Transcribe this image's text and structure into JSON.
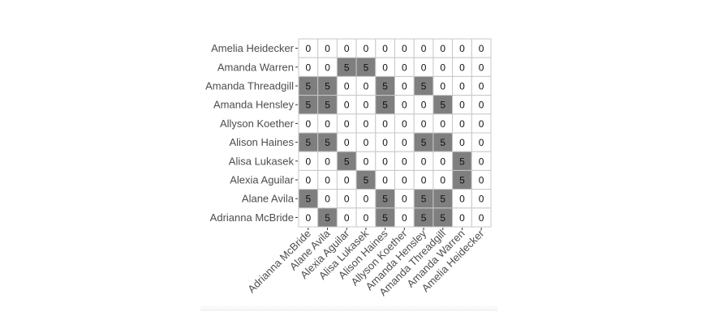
{
  "chart_data": {
    "type": "heatmap",
    "title": "",
    "xlabel": "",
    "ylabel": "",
    "grid": true,
    "legend": "none",
    "colors": {
      "high": "#7f7f7f",
      "low": "#ffffff",
      "border": "#c8c8c8",
      "text": "#111111",
      "tick": "#4d4d4d"
    },
    "x_categories": [
      "Adrianna McBride",
      "Alane Avila",
      "Alexia Aguilar",
      "Alisa Lukasek",
      "Alison Haines",
      "Allyson Koether",
      "Amanda Hensley",
      "Amanda Threadgill",
      "Amanda Warren",
      "Amelia Heidecker"
    ],
    "y_categories": [
      "Amelia Heidecker",
      "Amanda Warren",
      "Amanda Threadgill",
      "Amanda Hensley",
      "Allyson Koether",
      "Alison Haines",
      "Alisa Lukasek",
      "Alexia Aguilar",
      "Alane Avila",
      "Adrianna McBride"
    ],
    "values": [
      [
        0,
        0,
        0,
        0,
        0,
        0,
        0,
        0,
        0,
        0
      ],
      [
        0,
        0,
        5,
        5,
        0,
        0,
        0,
        0,
        0,
        0
      ],
      [
        5,
        5,
        0,
        0,
        5,
        0,
        5,
        0,
        0,
        0
      ],
      [
        5,
        5,
        0,
        0,
        5,
        0,
        0,
        5,
        0,
        0
      ],
      [
        0,
        0,
        0,
        0,
        0,
        0,
        0,
        0,
        0,
        0
      ],
      [
        5,
        5,
        0,
        0,
        0,
        0,
        5,
        5,
        0,
        0
      ],
      [
        0,
        0,
        5,
        0,
        0,
        0,
        0,
        0,
        5,
        0
      ],
      [
        0,
        0,
        0,
        5,
        0,
        0,
        0,
        0,
        5,
        0
      ],
      [
        5,
        0,
        0,
        0,
        5,
        0,
        5,
        5,
        0,
        0
      ],
      [
        0,
        5,
        0,
        0,
        5,
        0,
        5,
        5,
        0,
        0
      ]
    ]
  }
}
